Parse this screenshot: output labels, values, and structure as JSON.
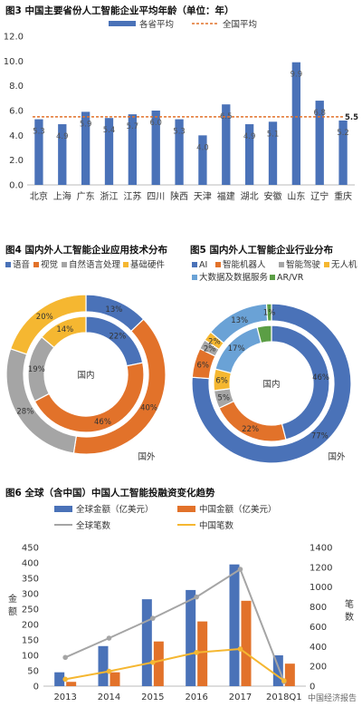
{
  "fig3": {
    "title": "图3  中国主要省份人工智能企业平均年龄（单位：年）",
    "legend": [
      "各省平均",
      "全国平均"
    ],
    "colors": {
      "bar": "#4a72b8",
      "avg": "#e2722a"
    },
    "chart_data": {
      "type": "bar",
      "categories": [
        "北京",
        "上海",
        "广东",
        "浙江",
        "江苏",
        "四川",
        "陕西",
        "天津",
        "福建",
        "湖北",
        "安徽",
        "山东",
        "辽宁",
        "重庆"
      ],
      "values": [
        5.3,
        4.9,
        5.9,
        5.4,
        5.7,
        6.0,
        5.3,
        4.0,
        6.5,
        4.9,
        5.1,
        9.9,
        6.8,
        5.2
      ],
      "value_labels": [
        "5.3",
        "4.9",
        "5.9",
        "5.4",
        "5.7",
        "6.0",
        "5.3",
        "4.0",
        "6.5",
        "4.9",
        "5.1",
        "9.9",
        "6.8",
        "5.2"
      ],
      "national_average": 5.5,
      "national_average_label": "5.5",
      "ylim": [
        0,
        12
      ],
      "yticks": [
        "0.0",
        "2.0",
        "4.0",
        "6.0",
        "8.0",
        "10.0",
        "12.0"
      ]
    }
  },
  "fig4": {
    "title": "图4  国内外人工智能企业应用技术分布",
    "legend": [
      "语音",
      "视觉",
      "自然语言处理",
      "基础硬件"
    ],
    "colors": [
      "#4a72b8",
      "#e2722a",
      "#a5a5a5",
      "#f5b731"
    ],
    "inner_label": "国内",
    "outer_label": "国外",
    "chart_data": {
      "type": "pie",
      "categories": [
        "语音",
        "视觉",
        "自然语言处理",
        "基础硬件"
      ],
      "series": [
        {
          "name": "国内",
          "values": [
            22,
            46,
            19,
            14
          ],
          "labels": [
            "22%",
            "46%",
            "19%",
            "14%"
          ]
        },
        {
          "name": "国外",
          "values": [
            13,
            40,
            28,
            20
          ],
          "labels": [
            "13%",
            "40%",
            "28%",
            "20%"
          ]
        }
      ]
    }
  },
  "fig5": {
    "title": "图5  国内外人工智能企业行业分布",
    "legend": [
      "AI",
      "智能机器人",
      "智能驾驶",
      "无人机",
      "大数据及数据服务",
      "AR/VR"
    ],
    "colors": [
      "#4a72b8",
      "#e2722a",
      "#a5a5a5",
      "#f5b731",
      "#6aa2d6",
      "#5b9e45"
    ],
    "inner_label": "国内",
    "outer_label": "国外",
    "chart_data": {
      "type": "pie",
      "categories": [
        "AI",
        "智能机器人",
        "智能驾驶",
        "无人机",
        "大数据及数据服务",
        "AR/VR"
      ],
      "series": [
        {
          "name": "国内",
          "values": [
            46,
            22,
            5,
            6,
            17,
            4
          ],
          "labels": [
            "46%",
            "22%",
            "5%",
            "6%",
            "17%",
            ""
          ]
        },
        {
          "name": "国外",
          "values": [
            77,
            6,
            2,
            2,
            13,
            1
          ],
          "labels": [
            "77%",
            "6%",
            "2%",
            "2%",
            "13%",
            "1%"
          ]
        }
      ]
    }
  },
  "fig6": {
    "title": "图6  全球（含中国）中国人工智能投融资变化趋势",
    "legend": [
      "全球金额（亿美元）",
      "中国金额（亿美元）",
      "全球笔数",
      "中国笔数"
    ],
    "colors": {
      "global_amount": "#4a72b8",
      "china_amount": "#e2722a",
      "global_count": "#a5a5a5",
      "china_count": "#f5b731"
    },
    "left_axis_label": "金额",
    "right_axis_label": "笔数",
    "watermark": "中国经济报告",
    "chart_data": {
      "type": "bar",
      "categories": [
        "2013",
        "2014",
        "2015",
        "2016",
        "2017",
        "2018Q1"
      ],
      "series": [
        {
          "name": "全球金额（亿美元）",
          "axis": "left",
          "values": [
            45,
            130,
            282,
            312,
            395,
            100
          ]
        },
        {
          "name": "中国金额（亿美元）",
          "axis": "left",
          "values": [
            14,
            45,
            145,
            210,
            277,
            73
          ]
        },
        {
          "name": "全球笔数",
          "axis": "right",
          "values": [
            290,
            485,
            685,
            900,
            1180,
            45
          ]
        },
        {
          "name": "中国笔数",
          "axis": "right",
          "values": [
            70,
            150,
            240,
            340,
            375,
            55
          ]
        }
      ],
      "ylim_left": [
        0,
        450
      ],
      "yticks_left": [
        "0",
        "50",
        "100",
        "150",
        "200",
        "250",
        "300",
        "350",
        "400",
        "450"
      ],
      "ylim_right": [
        0,
        1400
      ],
      "yticks_right": [
        "0",
        "200",
        "400",
        "600",
        "800",
        "1000",
        "1200",
        "1400"
      ]
    }
  }
}
